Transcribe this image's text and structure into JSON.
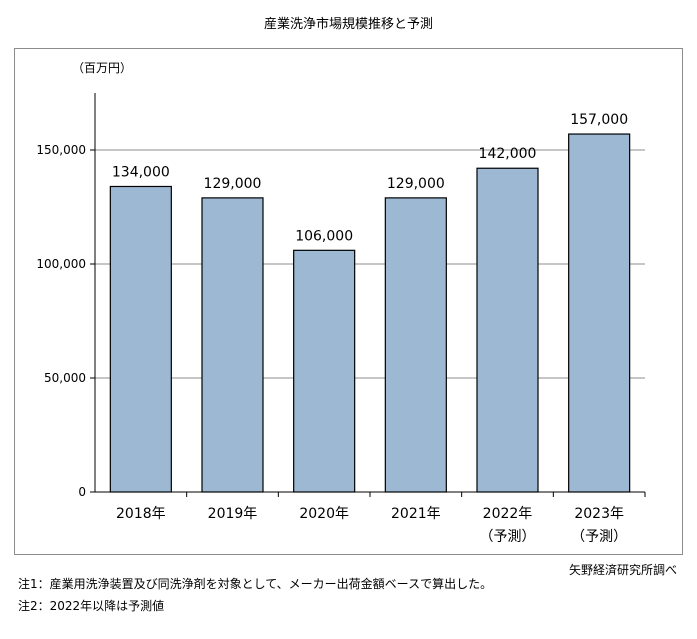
{
  "title": "産業洗浄市場規模推移と予測",
  "source": "矢野経済研究所調べ",
  "notes": [
    "注1：産業用洗浄装置及び同洗浄剤を対象として、メーカー出荷金額ベースで算出した。",
    "注2：2022年以降は予測値"
  ],
  "colors": {
    "bar_fill": "#9db8d3",
    "bar_stroke": "#000000",
    "grid": "#8c8c8c"
  },
  "chart_data": {
    "type": "bar",
    "ylabel": "（百万円）",
    "ylim": [
      0,
      175000
    ],
    "yticks": [
      0,
      50000,
      100000,
      150000
    ],
    "ytick_labels": [
      "0",
      "50,000",
      "100,000",
      "150,000"
    ],
    "grid": true,
    "categories": [
      "2018年",
      "2019年",
      "2020年",
      "2021年",
      "2022年",
      "2023年"
    ],
    "category_sublabels": [
      "",
      "",
      "",
      "",
      "（予測）",
      "（予測）"
    ],
    "values": [
      134000,
      129000,
      106000,
      129000,
      142000,
      157000
    ],
    "value_labels": [
      "134,000",
      "129,000",
      "106,000",
      "129,000",
      "142,000",
      "157,000"
    ]
  }
}
